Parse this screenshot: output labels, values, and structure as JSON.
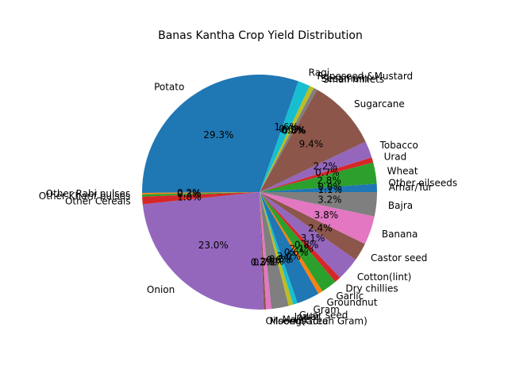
{
  "chart_data": {
    "type": "pie",
    "title": "Banas Kantha Crop Yield Distribution",
    "start_angle_deg": 0,
    "direction": "counterclockwise",
    "legend": "none",
    "slices": [
      {
        "label": "Arhar/Tur",
        "value": 1.1
      },
      {
        "label": "Other oilseeds",
        "value": 0.0
      },
      {
        "label": "Wheat",
        "value": 2.8
      },
      {
        "label": "Urad",
        "value": 0.7
      },
      {
        "label": "Tobacco",
        "value": 2.2
      },
      {
        "label": "Sugarcane",
        "value": 9.4
      },
      {
        "label": "Small millets",
        "value": 0.0
      },
      {
        "label": "Sesamum",
        "value": 0.5
      },
      {
        "label": "Rapeseed &Mustard",
        "value": 0.6
      },
      {
        "label": "Ragi",
        "value": 1.6
      },
      {
        "label": "Potato",
        "value": 29.3
      },
      {
        "label": "Other Rabi pulses",
        "value": 0.2
      },
      {
        "label": "Other Kharif pulses",
        "value": 0.3
      },
      {
        "label": "Other Cereals",
        "value": 1.0
      },
      {
        "label": "Onion",
        "value": 23.0
      },
      {
        "label": "Oilseeds total",
        "value": 0.3
      },
      {
        "label": "Moong(Green Gram)",
        "value": 0.7
      },
      {
        "label": "Maize",
        "value": 2.3
      },
      {
        "label": "Jowar",
        "value": 0.6
      },
      {
        "label": "Guar seed",
        "value": 0.6
      },
      {
        "label": "Gram",
        "value": 3.0
      },
      {
        "label": "Groundnut",
        "value": 0.6
      },
      {
        "label": "Garlic",
        "value": 2.1
      },
      {
        "label": "Dry chillies",
        "value": 0.8
      },
      {
        "label": "Cotton(lint)",
        "value": 3.1
      },
      {
        "label": "Castor seed",
        "value": 2.4
      },
      {
        "label": "Banana",
        "value": 3.8
      },
      {
        "label": "Bajra",
        "value": 3.2
      }
    ],
    "pct_labels": [
      "1.1%",
      "0.0%",
      "2.8%",
      "0.7%",
      "2.2%",
      "9.4%",
      "0.0%",
      "0.5%",
      "0.6%",
      "1.6%",
      "29.3%",
      "0.2%",
      "0.3%",
      "1.0%",
      "23.0%",
      "0.3%",
      "0.7%",
      "2.3%",
      "0.6%",
      "0.6%",
      "3.0%",
      "0.6%",
      "2.1%",
      "0.8%",
      "3.1%",
      "2.4%",
      "3.8%",
      "3.2%"
    ],
    "colors": [
      "#1f77b4",
      "#ff7f0e",
      "#2ca02c",
      "#d62728",
      "#9467bd",
      "#8c564b",
      "#e377c2",
      "#7f7f7f",
      "#bcbd22",
      "#17becf"
    ]
  }
}
